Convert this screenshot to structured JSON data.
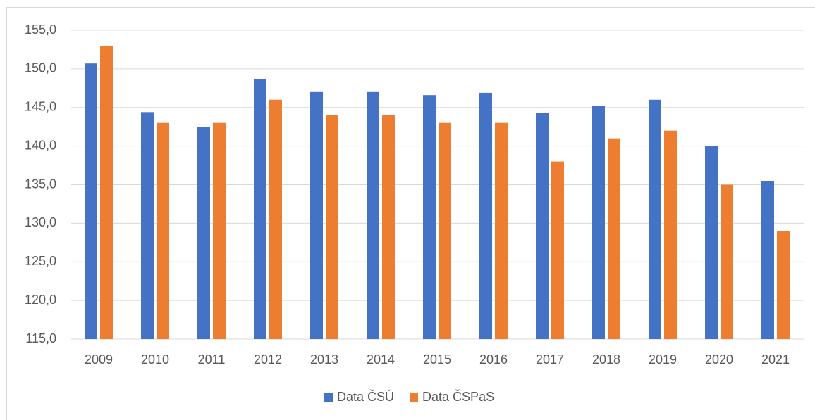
{
  "chart_data": {
    "type": "bar",
    "categories": [
      "2009",
      "2010",
      "2011",
      "2012",
      "2013",
      "2014",
      "2015",
      "2016",
      "2017",
      "2018",
      "2019",
      "2020",
      "2021"
    ],
    "series": [
      {
        "name": "Data ČSÚ",
        "color": "#4472c4",
        "values": [
          150.7,
          144.4,
          142.5,
          148.7,
          147.0,
          147.0,
          146.6,
          146.9,
          144.3,
          145.2,
          146.0,
          140.0,
          135.5
        ]
      },
      {
        "name": "Data ČSPaS",
        "color": "#ed7d31",
        "values": [
          153.0,
          143.0,
          143.0,
          146.0,
          144.0,
          144.0,
          143.0,
          143.0,
          138.0,
          141.0,
          142.0,
          135.0,
          129.0
        ]
      }
    ],
    "ylim": [
      115,
      155
    ],
    "yticks": [
      {
        "value": 115,
        "label": "115,0"
      },
      {
        "value": 120,
        "label": "120,0"
      },
      {
        "value": 125,
        "label": "125,0"
      },
      {
        "value": 130,
        "label": "130,0"
      },
      {
        "value": 135,
        "label": "135,0"
      },
      {
        "value": 140,
        "label": "140,0"
      },
      {
        "value": 145,
        "label": "145,0"
      },
      {
        "value": 150,
        "label": "150,0"
      },
      {
        "value": 155,
        "label": "155,0"
      }
    ],
    "grid": true,
    "legend": "bottom"
  }
}
